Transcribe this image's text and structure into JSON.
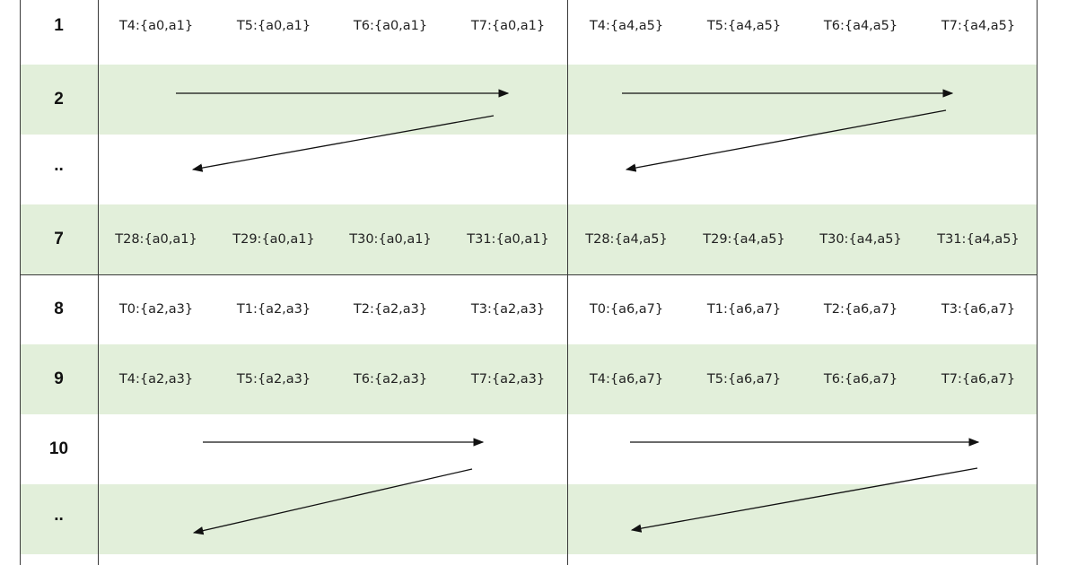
{
  "rows": [
    {
      "label": "1",
      "shaded": false,
      "kind": "cells",
      "cells": [
        "T4:{a0,a1}",
        "T5:{a0,a1}",
        "T6:{a0,a1}",
        "T7:{a0,a1}",
        "T4:{a4,a5}",
        "T5:{a4,a5}",
        "T6:{a4,a5}",
        "T7:{a4,a5}"
      ]
    },
    {
      "label": "2",
      "shaded": true,
      "kind": "arrow-right"
    },
    {
      "label": "..",
      "shaded": false,
      "kind": "arrow-back"
    },
    {
      "label": "7",
      "shaded": true,
      "kind": "cells",
      "cells": [
        "T28:{a0,a1}",
        "T29:{a0,a1}",
        "T30:{a0,a1}",
        "T31:{a0,a1}",
        "T28:{a4,a5}",
        "T29:{a4,a5}",
        "T30:{a4,a5}",
        "T31:{a4,a5}"
      ]
    },
    {
      "label": "8",
      "shaded": false,
      "kind": "cells",
      "cells": [
        "T0:{a2,a3}",
        "T1:{a2,a3}",
        "T2:{a2,a3}",
        "T3:{a2,a3}",
        "T0:{a6,a7}",
        "T1:{a6,a7}",
        "T2:{a6,a7}",
        "T3:{a6,a7}"
      ]
    },
    {
      "label": "9",
      "shaded": true,
      "kind": "cells",
      "cells": [
        "T4:{a2,a3}",
        "T5:{a2,a3}",
        "T6:{a2,a3}",
        "T7:{a2,a3}",
        "T4:{a6,a7}",
        "T5:{a6,a7}",
        "T6:{a6,a7}",
        "T7:{a6,a7}"
      ]
    },
    {
      "label": "10",
      "shaded": false,
      "kind": "arrow-right"
    },
    {
      "label": "..",
      "shaded": true,
      "kind": "arrow-back"
    }
  ],
  "colors": {
    "shade": "#e2efda",
    "grid": "#3a3a3a",
    "text": "#222222"
  }
}
